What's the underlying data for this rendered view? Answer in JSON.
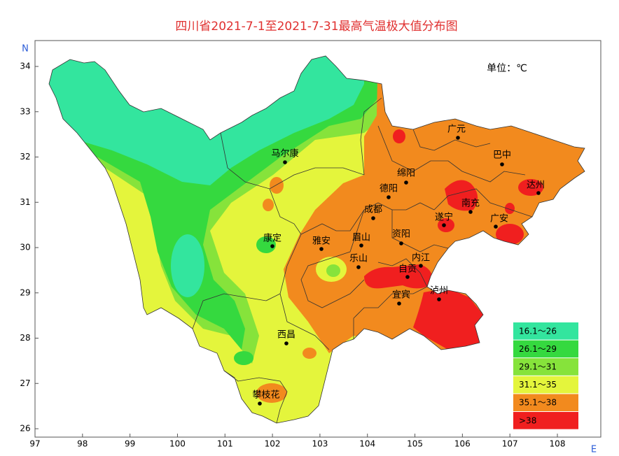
{
  "title": "四川省2021-7-1至2021-7-31最高气温极大值分布图",
  "unit": "单位：℃",
  "north": "N",
  "east": "E",
  "x_axis": {
    "ticks": [
      97,
      98,
      99,
      100,
      101,
      102,
      103,
      104,
      105,
      106,
      107,
      108
    ]
  },
  "y_axis": {
    "ticks": [
      26,
      27,
      28,
      29,
      30,
      31,
      32,
      33,
      34
    ]
  },
  "cities": [
    "马尔康",
    "康定",
    "雅安",
    "眉山",
    "成都",
    "德阳",
    "绵阳",
    "广元",
    "巴中",
    "达州",
    "南充",
    "遂宁",
    "广安",
    "资阳",
    "乐山",
    "内江",
    "自贡",
    "宜宾",
    "泸州",
    "西昌",
    "攀枝花"
  ],
  "legend": [
    {
      "label": "16.1～26",
      "color": "#33e59e"
    },
    {
      "label": "26.1～29",
      "color": "#35d93f"
    },
    {
      "label": "29.1～31",
      "color": "#86e33b"
    },
    {
      "label": "31.1～35",
      "color": "#e4f53c"
    },
    {
      "label": "35.1～38",
      "color": "#f28a1e"
    },
    {
      "label": ">38",
      "color": "#f01f1f"
    }
  ]
}
